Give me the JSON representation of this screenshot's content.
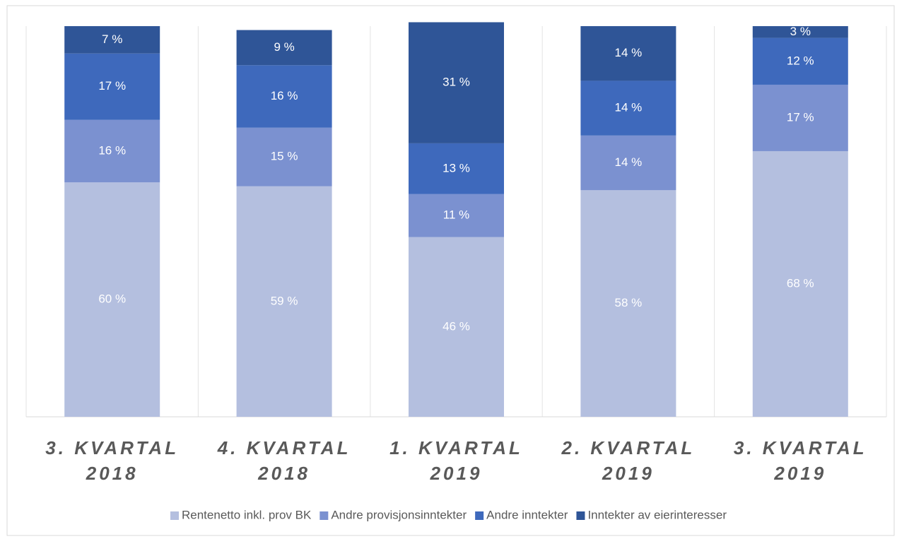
{
  "chart_data": {
    "type": "stacked_bar",
    "categories": [
      "3. KVARTAL 2018",
      "4. KVARTAL 2018",
      "1. KVARTAL 2019",
      "2. KVARTAL 2019",
      "3. KVARTAL 2019"
    ],
    "series": [
      {
        "name": "Rentenetto inkl. prov BK",
        "color": "#b4bfdf",
        "values": [
          60,
          59,
          46,
          58,
          68
        ],
        "value_labels": [
          "60 %",
          "59 %",
          "46 %",
          "58 %",
          "68 %"
        ]
      },
      {
        "name": "Andre provisjonsinntekter",
        "color": "#7b91d0",
        "values": [
          16,
          15,
          11,
          14,
          17
        ],
        "value_labels": [
          "16 %",
          "15 %",
          "11 %",
          "14 %",
          "17 %"
        ]
      },
      {
        "name": "Andre inntekter",
        "color": "#3e69bc",
        "values": [
          17,
          16,
          13,
          14,
          12
        ],
        "value_labels": [
          "17 %",
          "16 %",
          "13 %",
          "14 %",
          "12 %"
        ]
      },
      {
        "name": "Inntekter av eierinteresser",
        "color": "#2f5597",
        "values": [
          7,
          9,
          31,
          14,
          3
        ],
        "value_labels": [
          "7 %",
          "9 %",
          "31 %",
          "14 %",
          "3 %"
        ]
      }
    ],
    "ylim": [
      0,
      100
    ],
    "grid": true,
    "legend": "bottom"
  }
}
